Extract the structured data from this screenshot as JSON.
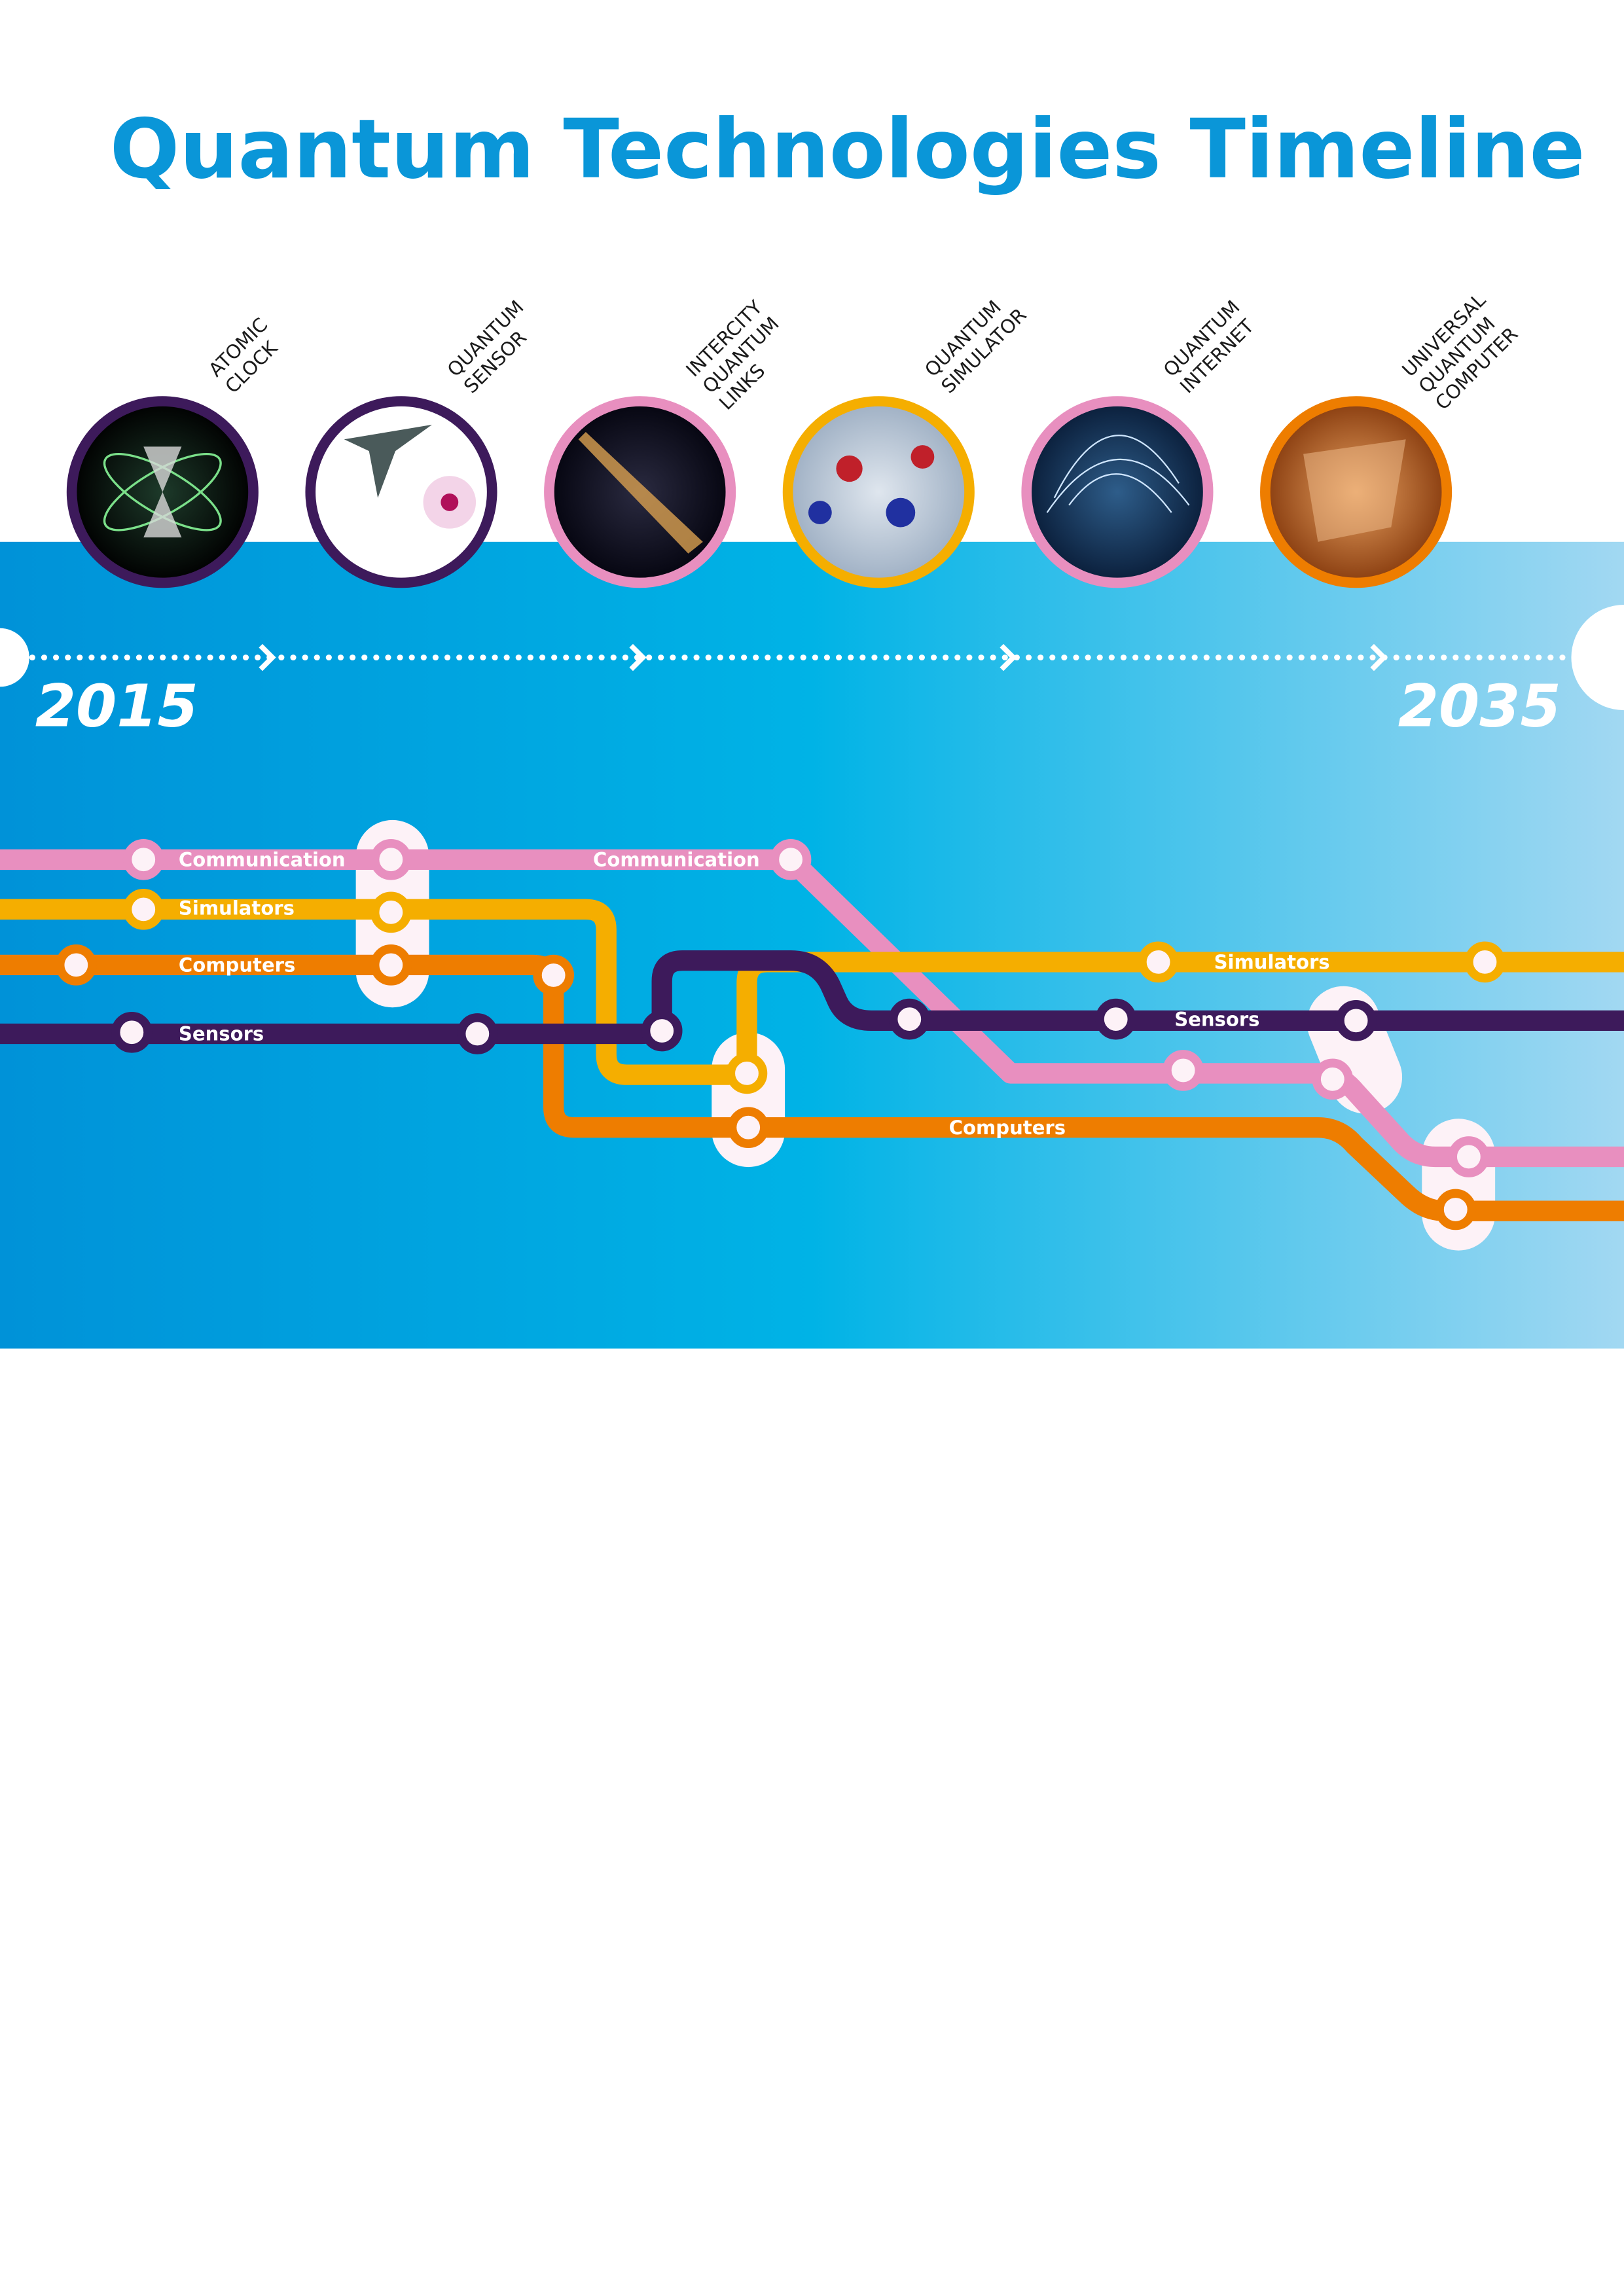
{
  "header": {
    "title": "Quantum Technologies Timeline"
  },
  "milestones": [
    {
      "lines": [
        "ATOMIC",
        "CLOCK"
      ]
    },
    {
      "lines": [
        "QUANTUM",
        "SENSOR"
      ]
    },
    {
      "lines": [
        "INTERCITY",
        "QUANTUM",
        "LINKS"
      ]
    },
    {
      "lines": [
        "QUANTUM",
        "SIMULATOR"
      ]
    },
    {
      "lines": [
        "QUANTUM",
        "INTERNET"
      ]
    },
    {
      "lines": [
        "UNIVERSAL",
        "QUANTUM",
        "COMPUTER"
      ]
    }
  ],
  "timeline": {
    "start": "2015",
    "end": "2035"
  },
  "line_labels": [
    "Communication",
    "Simulators",
    "Computers",
    "Sensors",
    "Communication",
    "Simulators",
    "Sensors",
    "Computers"
  ]
}
